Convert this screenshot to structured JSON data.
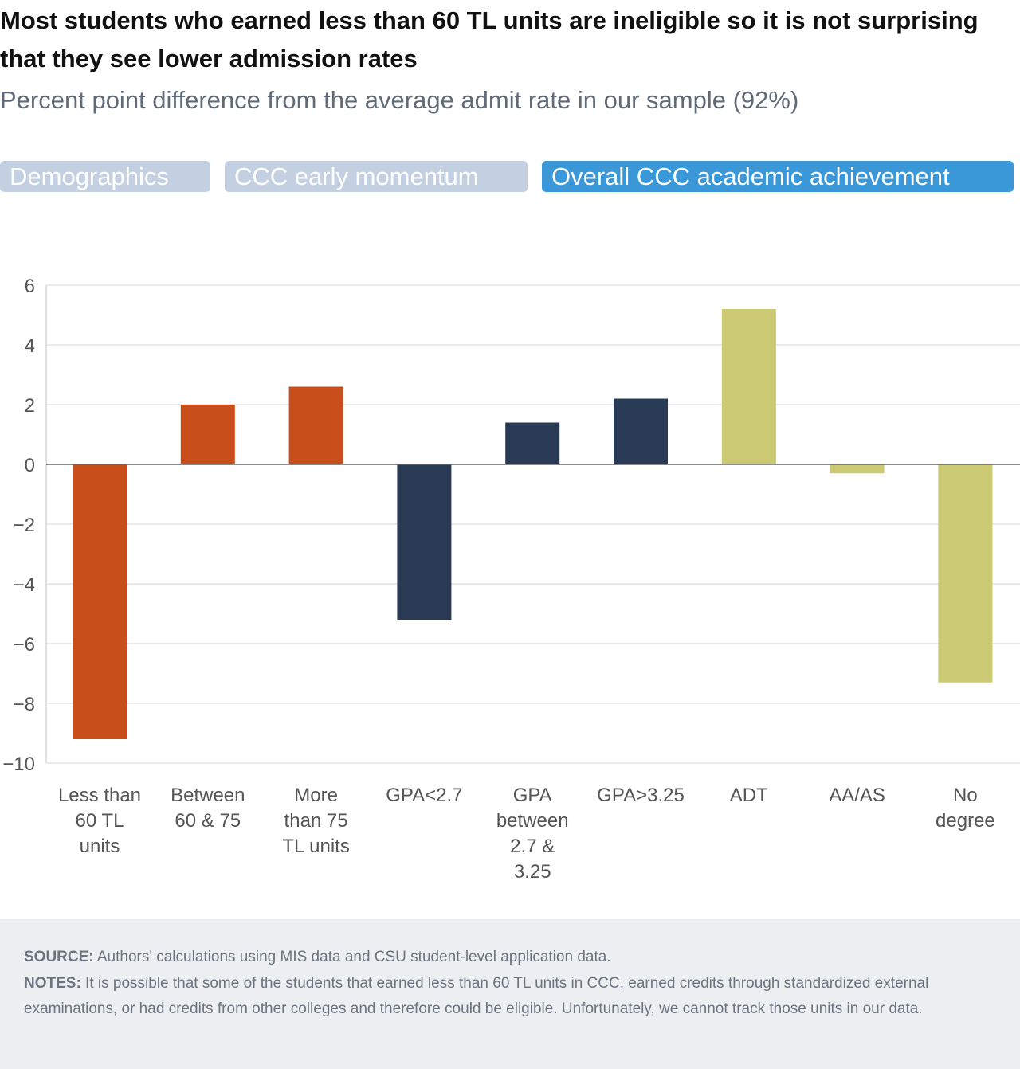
{
  "header": {
    "title": "Most students who earned less than 60 TL units are ineligible so it is not surprising that they see lower admission rates",
    "subtitle": "Percent point difference from the average admit rate in our sample (92%)"
  },
  "tabs": [
    {
      "label": "Demographics",
      "active": false
    },
    {
      "label": "CCC early momentum",
      "active": false
    },
    {
      "label": "Overall CCC academic achievement",
      "active": true
    }
  ],
  "chart_data": {
    "type": "bar",
    "categories": [
      [
        "Less than",
        "60 TL",
        "units"
      ],
      [
        "Between",
        "60 & 75"
      ],
      [
        "More",
        "than 75",
        "TL units"
      ],
      [
        "GPA<2.7"
      ],
      [
        "GPA",
        "between",
        "2.7 &",
        "3.25"
      ],
      [
        "GPA>3.25"
      ],
      [
        "ADT"
      ],
      [
        "AA/AS"
      ],
      [
        "No",
        "degree"
      ]
    ],
    "values": [
      -9.2,
      2.0,
      2.6,
      -5.2,
      1.4,
      2.2,
      5.2,
      -0.3,
      -7.3
    ],
    "bar_colors": [
      "#c84e1c",
      "#c84e1c",
      "#c84e1c",
      "#283a54",
      "#283a54",
      "#283a54",
      "#cbc971",
      "#cbc971",
      "#cbc971"
    ],
    "ylim": [
      -10,
      6
    ],
    "yticks": [
      6,
      4,
      2,
      0,
      -2,
      -4,
      -6,
      -8,
      -10
    ],
    "ytick_labels": [
      "6",
      "4",
      "2",
      "0",
      "−2",
      "−4",
      "−6",
      "−8",
      "−10"
    ],
    "grid": true,
    "legend": "none"
  },
  "footer": {
    "source_label": "SOURCE:",
    "source_text": " Authors' calculations using MIS data and CSU student-level application data.",
    "notes_label": "NOTES:",
    "notes_text": " It is possible that some of the students that earned less than 60 TL units in CCC, earned credits through standardized external examinations, or had credits from other colleges and therefore could be eligible. Unfortunately, we cannot track those units in our data."
  }
}
